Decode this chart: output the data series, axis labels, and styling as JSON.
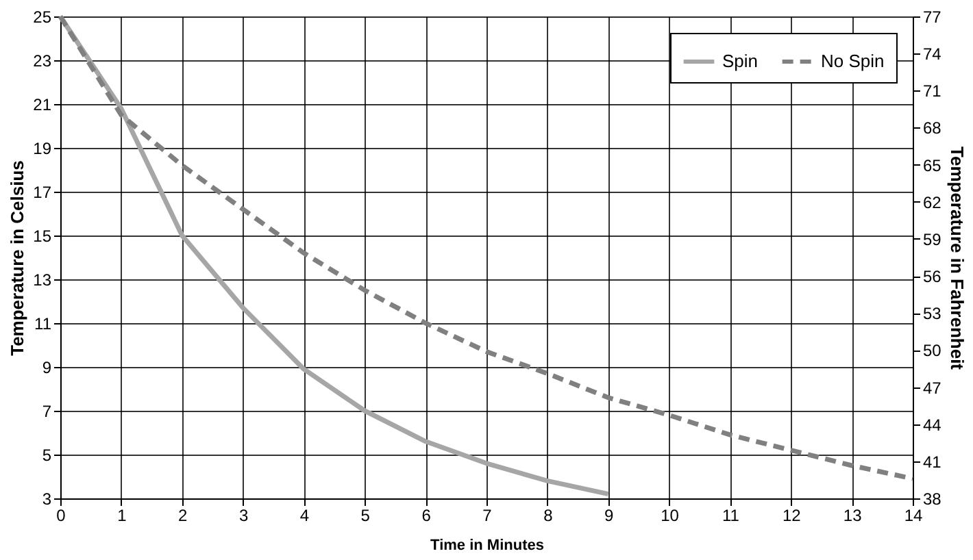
{
  "chart_data": {
    "type": "line",
    "xlabel": "Time in Minutes",
    "ylabel": "Temperature in Celsius",
    "y2label": "Temperature in Fahrenheit",
    "x": [
      0,
      1,
      2,
      3,
      4,
      5,
      6,
      7,
      8,
      9,
      10,
      11,
      12,
      13,
      14
    ],
    "series": [
      {
        "name": "Spin",
        "color": "#a6a6a6",
        "line_style": "solid",
        "x": [
          0,
          1,
          2,
          3,
          4,
          5,
          6,
          7,
          8,
          9
        ],
        "values": [
          25,
          20.8,
          15,
          11.7,
          8.9,
          7,
          5.6,
          4.6,
          3.8,
          3.2
        ]
      },
      {
        "name": "No Spin",
        "color": "#808080",
        "line_style": "dashed",
        "values": [
          25,
          20.5,
          18.2,
          16.2,
          14.2,
          12.5,
          11,
          9.7,
          8.7,
          7.6,
          6.8,
          5.9,
          5.2,
          4.5,
          3.9
        ]
      }
    ],
    "xlim": [
      0,
      14
    ],
    "xticks": [
      0,
      1,
      2,
      3,
      4,
      5,
      6,
      7,
      8,
      9,
      10,
      11,
      12,
      13,
      14
    ],
    "ylim": [
      3,
      25
    ],
    "yticks": [
      3,
      5,
      7,
      9,
      11,
      13,
      15,
      17,
      19,
      21,
      23,
      25
    ],
    "y2lim": [
      38,
      77
    ],
    "y2ticks": [
      38,
      41,
      44,
      47,
      50,
      53,
      56,
      59,
      62,
      65,
      68,
      71,
      74,
      77
    ],
    "grid": true,
    "legend": "top right",
    "marker": "none"
  }
}
